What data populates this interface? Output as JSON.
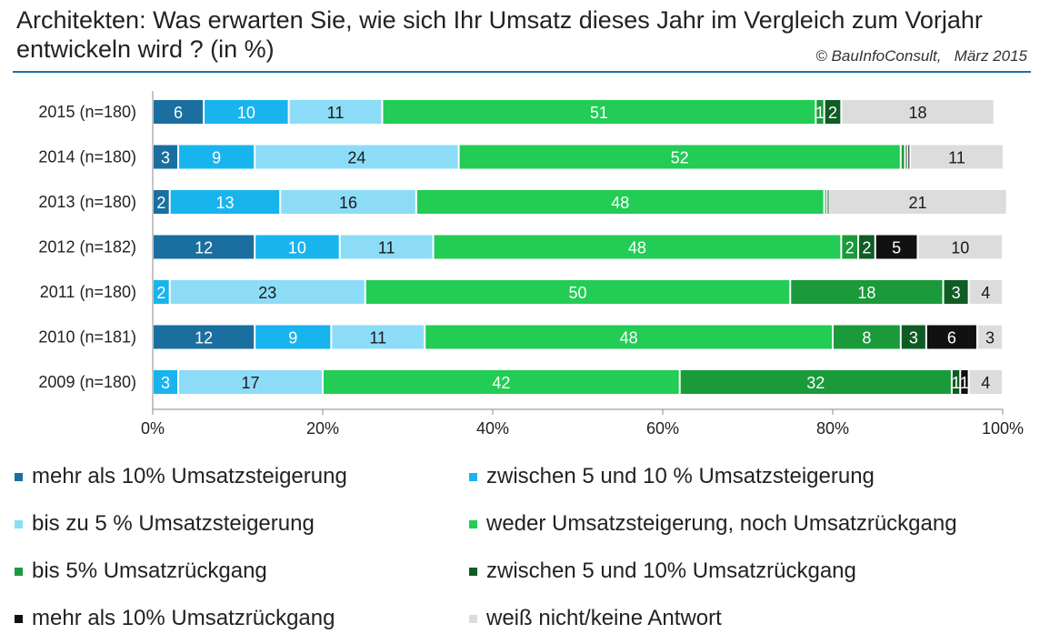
{
  "header": {
    "title": "Architekten: Was erwarten Sie, wie  sich Ihr Umsatz dieses Jahr im Vergleich zum Vorjahr entwickeln wird ? (in %)",
    "source": "© BauInfoConsult,   März 2015"
  },
  "chart_data": {
    "type": "bar",
    "orientation": "horizontal",
    "stacked": true,
    "title": "Architekten: Was erwarten Sie, wie  sich Ihr Umsatz dieses Jahr im Vergleich zum Vorjahr entwickeln wird ? (in %)",
    "categories": [
      "2015 (n=180)",
      "2014 (n=180)",
      "2013 (n=180)",
      "2012 (n=182)",
      "2011 (n=180)",
      "2010 (n=181)",
      "2009 (n=180)"
    ],
    "xlim": [
      0,
      100
    ],
    "x_ticks": [
      "0%",
      "20%",
      "40%",
      "60%",
      "80%",
      "100%"
    ],
    "legend_position": "bottom",
    "grid": false,
    "series": [
      {
        "name": "mehr als 10% Umsatzsteigerung",
        "color": "#1a6fa0",
        "label_color": "#ffffff",
        "values": [
          6,
          3,
          2,
          12,
          0,
          12,
          0
        ],
        "labels": [
          "6",
          "3",
          "2",
          "12",
          "",
          "12",
          ""
        ]
      },
      {
        "name": "zwischen 5 und 10 % Umsatzsteigerung",
        "color": "#18b4ee",
        "label_color": "#ffffff",
        "values": [
          10,
          9,
          13,
          10,
          2,
          9,
          3
        ],
        "labels": [
          "10",
          "9",
          "13",
          "10",
          "2",
          "9",
          "3"
        ]
      },
      {
        "name": "bis zu 5 % Umsatzsteigerung",
        "color": "#8ddcf7",
        "label_color": "#1a1a1a",
        "values": [
          11,
          24,
          16,
          11,
          23,
          11,
          17
        ],
        "labels": [
          "11",
          "24",
          "16",
          "11",
          "23",
          "11",
          "17"
        ]
      },
      {
        "name": "weder Umsatzsteigerung, noch Umsatzrückgang",
        "color": "#22cc55",
        "label_color": "#ffffff",
        "values": [
          51,
          52,
          48,
          48,
          50,
          48,
          42
        ],
        "labels": [
          "51",
          "52",
          "48",
          "48",
          "50",
          "48",
          "42"
        ]
      },
      {
        "name": "bis 5% Umsatzrückgang",
        "color": "#1a9a3a",
        "label_color": "#ffffff",
        "values": [
          1,
          0.5,
          0.3,
          2,
          18,
          8,
          32
        ],
        "labels": [
          "1",
          "",
          "",
          "2",
          "18",
          "8",
          "32"
        ]
      },
      {
        "name": "zwischen 5 und 10% Umsatzrückgang",
        "color": "#0f5c25",
        "label_color": "#ffffff",
        "values": [
          2,
          0.3,
          0.2,
          2,
          3,
          3,
          1
        ],
        "labels": [
          "2",
          "",
          "",
          "2",
          "3",
          "3",
          "1"
        ]
      },
      {
        "name": "mehr als 10% Umsatzrückgang",
        "color": "#111111",
        "label_color": "#ffffff",
        "values": [
          0,
          0.3,
          0,
          5,
          0,
          6,
          1
        ],
        "labels": [
          "",
          "",
          "",
          "5",
          "",
          "6",
          "1"
        ]
      },
      {
        "name": "weiß nicht/keine Antwort",
        "color": "#dcdcdc",
        "label_color": "#1a1a1a",
        "values": [
          18,
          11,
          21,
          10,
          4,
          3,
          4
        ],
        "labels": [
          "18",
          "11",
          "21",
          "10",
          "4",
          "3",
          "4"
        ]
      }
    ]
  }
}
